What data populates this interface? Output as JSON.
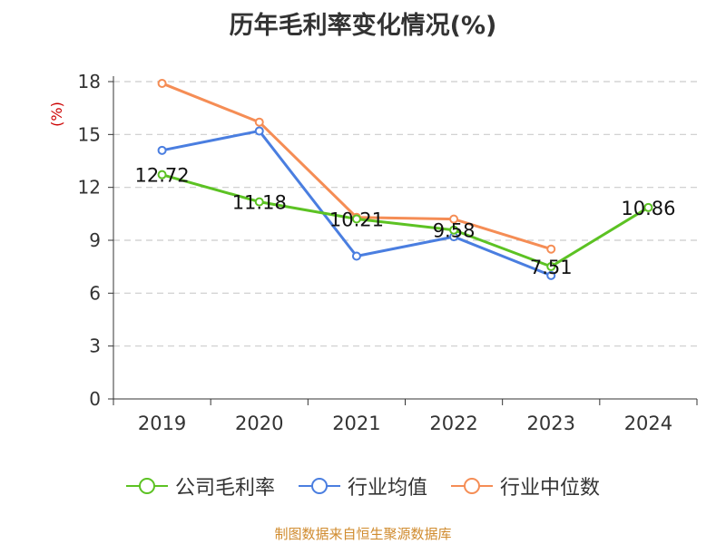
{
  "chart_data": {
    "type": "line",
    "title": "历年毛利率变化情况(%)",
    "ylabel": "(%)",
    "xlabel": "",
    "categories": [
      "2019",
      "2020",
      "2021",
      "2022",
      "2023",
      "2024"
    ],
    "yticks": [
      "0",
      "3",
      "6",
      "9",
      "12",
      "15",
      "18"
    ],
    "ylim": [
      0,
      18
    ],
    "grid": true,
    "legend_position": "bottom",
    "series": [
      {
        "name": "公司毛利率",
        "color": "#5cc223",
        "values": [
          12.72,
          11.18,
          10.21,
          9.58,
          7.51,
          10.86
        ],
        "labels": [
          "12.72",
          "11.18",
          "10.21",
          "9.58",
          "7.51",
          "10.86"
        ]
      },
      {
        "name": "行业均值",
        "color": "#4a7ee0",
        "values": [
          14.1,
          15.2,
          8.1,
          9.2,
          7.0,
          null
        ]
      },
      {
        "name": "行业中位数",
        "color": "#f58d55",
        "values": [
          17.9,
          15.7,
          10.3,
          10.2,
          8.5,
          null
        ]
      }
    ]
  },
  "footer": "制图数据来自恒生聚源数据库"
}
